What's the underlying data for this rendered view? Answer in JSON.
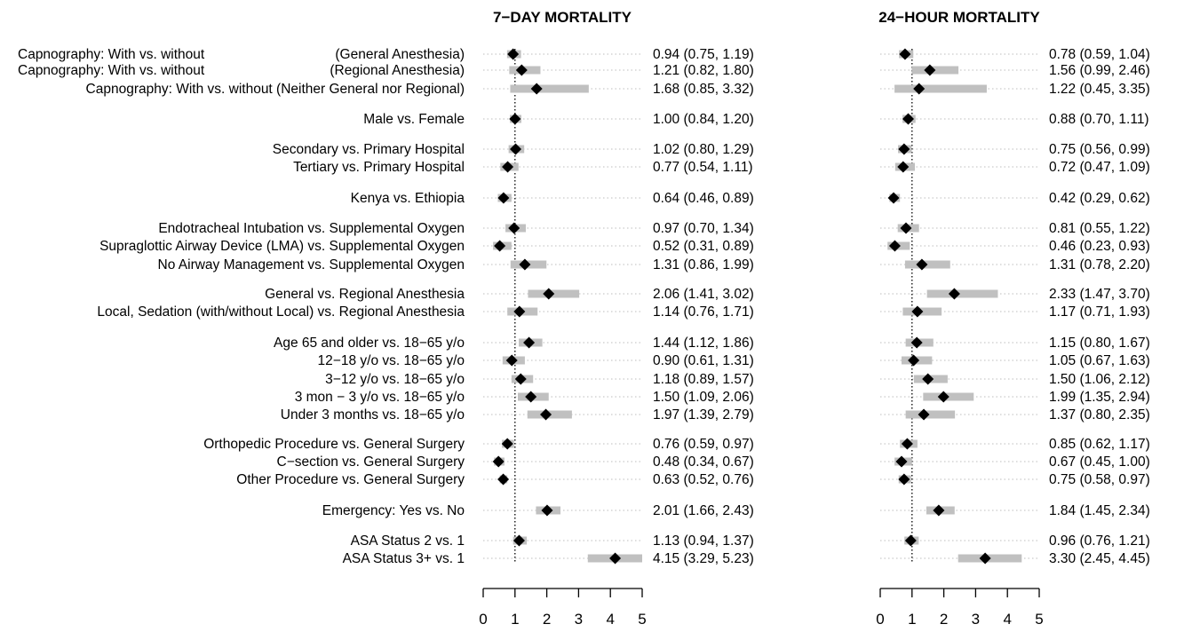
{
  "chart_data": {
    "type": "forest",
    "reference_line": 1,
    "x_ticks": [
      0,
      1,
      2,
      3,
      4,
      5
    ],
    "xlim": [
      0,
      5
    ],
    "grid": "dotted guide line per row",
    "rows": [
      {
        "label": "Capnography: With vs. without",
        "label2": "(General Anesthesia)",
        "group": 0
      },
      {
        "label": "Capnography: With vs. without",
        "label2": "(Regional Anesthesia)",
        "group": 0
      },
      {
        "label": "Capnography: With vs. without (Neither General nor Regional)",
        "group": 0
      },
      {
        "label": "Male vs. Female",
        "group": 1
      },
      {
        "label": "Secondary vs. Primary Hospital",
        "group": 2
      },
      {
        "label": "Tertiary vs. Primary Hospital",
        "group": 2
      },
      {
        "label": "Kenya vs. Ethiopia",
        "group": 3
      },
      {
        "label": "Endotracheal Intubation vs. Supplemental Oxygen",
        "group": 4
      },
      {
        "label": "Supraglottic Airway Device (LMA) vs. Supplemental Oxygen",
        "group": 4
      },
      {
        "label": "No Airway Management vs. Supplemental Oxygen",
        "group": 4
      },
      {
        "label": "General vs. Regional Anesthesia",
        "group": 5
      },
      {
        "label": "Local, Sedation (with/without Local) vs. Regional Anesthesia",
        "group": 5
      },
      {
        "label": "Age 65 and older vs. 18−65 y/o",
        "group": 6
      },
      {
        "label": "12−18 y/o vs. 18−65 y/o",
        "group": 6
      },
      {
        "label": "3−12 y/o vs. 18−65 y/o",
        "group": 6
      },
      {
        "label": "3 mon − 3 y/o vs. 18−65 y/o",
        "group": 6
      },
      {
        "label": "Under 3 months vs. 18−65 y/o",
        "group": 6
      },
      {
        "label": "Orthopedic Procedure vs. General Surgery",
        "group": 7
      },
      {
        "label": "C−section vs. General Surgery",
        "group": 7
      },
      {
        "label": "Other Procedure vs. General Surgery",
        "group": 7
      },
      {
        "label": "Emergency:  Yes vs. No",
        "group": 8
      },
      {
        "label": "ASA Status 2    vs. 1",
        "group": 9
      },
      {
        "label": "ASA Status 3+  vs. 1",
        "group": 9
      }
    ],
    "panels": [
      {
        "title": "7−DAY MORTALITY",
        "estimates": [
          0.94,
          1.21,
          1.68,
          1.0,
          1.02,
          0.77,
          0.64,
          0.97,
          0.52,
          1.31,
          2.06,
          1.14,
          1.44,
          0.9,
          1.18,
          1.5,
          1.97,
          0.76,
          0.48,
          0.63,
          2.01,
          1.13,
          4.15
        ],
        "lower": [
          0.75,
          0.82,
          0.85,
          0.84,
          0.8,
          0.54,
          0.46,
          0.7,
          0.31,
          0.86,
          1.41,
          0.76,
          1.12,
          0.61,
          0.89,
          1.09,
          1.39,
          0.59,
          0.34,
          0.52,
          1.66,
          0.94,
          3.29
        ],
        "upper": [
          1.19,
          1.8,
          3.32,
          1.2,
          1.29,
          1.11,
          0.89,
          1.34,
          0.89,
          1.99,
          3.02,
          1.71,
          1.86,
          1.31,
          1.57,
          2.06,
          2.79,
          0.97,
          0.67,
          0.76,
          2.43,
          1.37,
          5.23
        ],
        "ci_text": [
          "0.94 (0.75, 1.19)",
          "1.21 (0.82, 1.80)",
          "1.68 (0.85, 3.32)",
          "1.00 (0.84, 1.20)",
          "1.02 (0.80, 1.29)",
          "0.77 (0.54, 1.11)",
          "0.64 (0.46, 0.89)",
          "0.97 (0.70, 1.34)",
          "0.52 (0.31, 0.89)",
          "1.31 (0.86, 1.99)",
          "2.06 (1.41, 3.02)",
          "1.14 (0.76, 1.71)",
          "1.44 (1.12, 1.86)",
          "0.90 (0.61, 1.31)",
          "1.18 (0.89, 1.57)",
          "1.50 (1.09, 2.06)",
          "1.97 (1.39, 2.79)",
          "0.76 (0.59, 0.97)",
          "0.48 (0.34, 0.67)",
          "0.63 (0.52, 0.76)",
          "2.01 (1.66, 2.43)",
          "1.13 (0.94, 1.37)",
          "4.15 (3.29, 5.23)"
        ]
      },
      {
        "title": "24−HOUR MORTALITY",
        "estimates": [
          0.78,
          1.56,
          1.22,
          0.88,
          0.75,
          0.72,
          0.42,
          0.81,
          0.46,
          1.31,
          2.33,
          1.17,
          1.15,
          1.05,
          1.5,
          1.99,
          1.37,
          0.85,
          0.67,
          0.75,
          1.84,
          0.96,
          3.3
        ],
        "lower": [
          0.59,
          0.99,
          0.45,
          0.7,
          0.56,
          0.47,
          0.29,
          0.55,
          0.23,
          0.78,
          1.47,
          0.71,
          0.8,
          0.67,
          1.06,
          1.35,
          0.8,
          0.62,
          0.45,
          0.58,
          1.45,
          0.76,
          2.45
        ],
        "upper": [
          1.04,
          2.46,
          3.35,
          1.11,
          0.99,
          1.09,
          0.62,
          1.22,
          0.93,
          2.2,
          3.7,
          1.93,
          1.67,
          1.63,
          2.12,
          2.94,
          2.35,
          1.17,
          1.0,
          0.97,
          2.34,
          1.21,
          4.45
        ],
        "ci_text": [
          "0.78 (0.59, 1.04)",
          "1.56 (0.99, 2.46)",
          "1.22 (0.45, 3.35)",
          "0.88 (0.70, 1.11)",
          "0.75 (0.56, 0.99)",
          "0.72 (0.47, 1.09)",
          "0.42 (0.29, 0.62)",
          "0.81 (0.55, 1.22)",
          "0.46 (0.23, 0.93)",
          "1.31 (0.78, 2.20)",
          "2.33 (1.47, 3.70)",
          "1.17 (0.71, 1.93)",
          "1.15 (0.80, 1.67)",
          "1.05 (0.67, 1.63)",
          "1.50 (1.06, 2.12)",
          "1.99 (1.35, 2.94)",
          "1.37 (0.80, 2.35)",
          "0.85 (0.62, 1.17)",
          "0.67 (0.45, 1.00)",
          "0.75 (0.58, 0.97)",
          "1.84 (1.45, 2.34)",
          "0.96 (0.76, 1.21)",
          "3.30 (2.45, 4.45)"
        ]
      }
    ],
    "colors": {
      "ci_bar": "#c0c0c0",
      "marker": "#000000",
      "guide": "#bdbdbd",
      "reference": "#000000"
    }
  }
}
